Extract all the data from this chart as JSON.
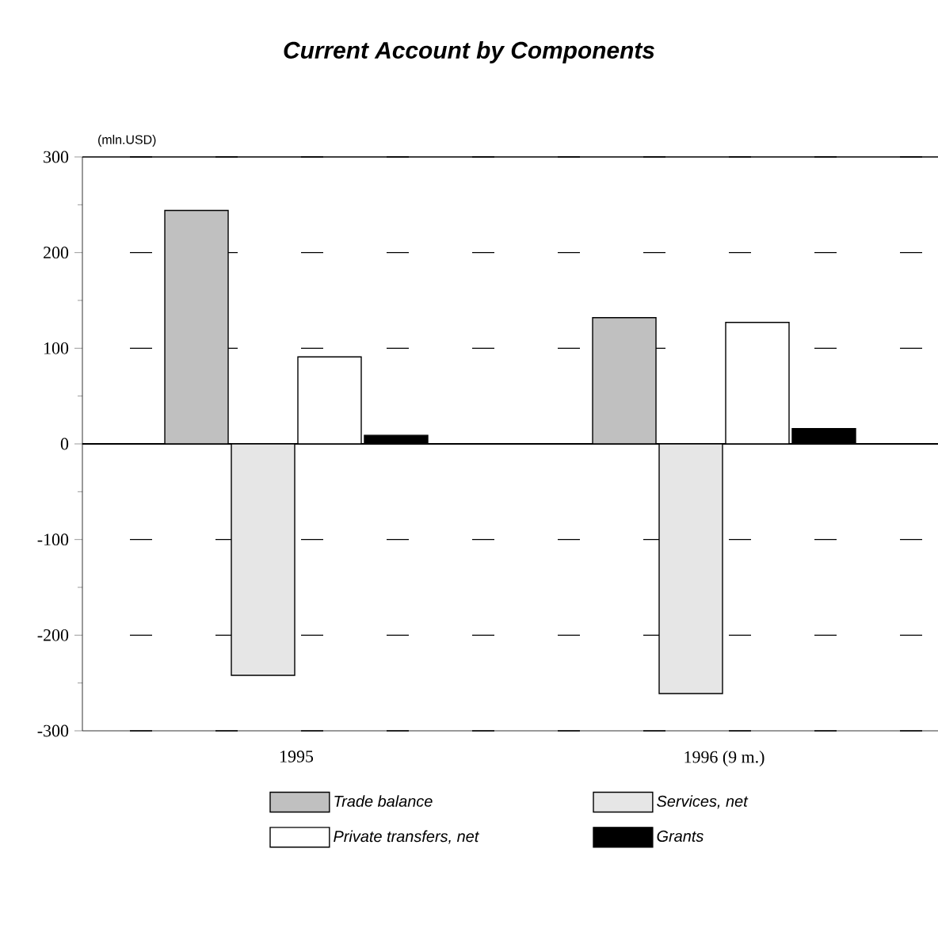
{
  "chart_data": {
    "type": "bar",
    "title": "Current Account by Components",
    "annotations": [
      "(mln.USD)"
    ],
    "categories": [
      "1995",
      "1996 (9 m.)"
    ],
    "series": [
      {
        "name": "Trade balance",
        "color": "#c0c0c0",
        "values": [
          244,
          132
        ]
      },
      {
        "name": "Services, net",
        "color": "#e6e6e6",
        "values": [
          -242,
          -261
        ]
      },
      {
        "name": "Private transfers, net",
        "color": "#ffffff",
        "values": [
          91,
          127
        ]
      },
      {
        "name": "Grants",
        "color": "#000000",
        "values": [
          9,
          16
        ]
      }
    ],
    "ylim": [
      -300,
      300
    ],
    "yticks": [
      -300,
      -200,
      -100,
      0,
      100,
      200,
      300
    ],
    "grid": "y",
    "legend": "bottom"
  }
}
